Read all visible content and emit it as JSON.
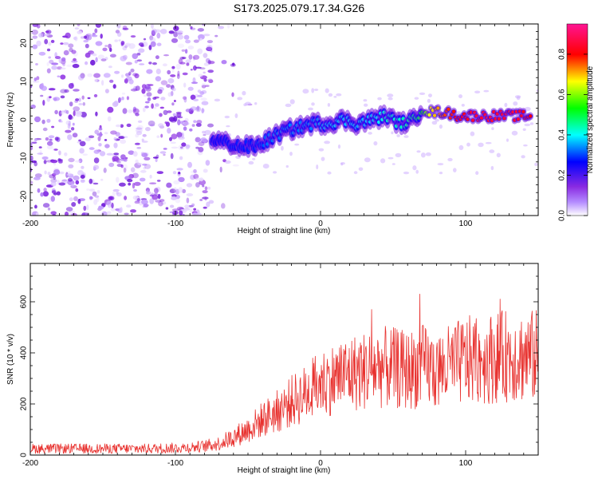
{
  "figure": {
    "title": "S173.2025.079.17.34.G26"
  },
  "chart_data": [
    {
      "type": "heatmap",
      "xlabel": "Height of straight line (km)",
      "ylabel": "Frequency (Hz)",
      "xlim": [
        -200,
        150
      ],
      "ylim": [
        -25,
        25
      ],
      "xticks": [
        -200,
        -100,
        0,
        100
      ],
      "xtick_labels": [
        "-200",
        "-100",
        "0",
        "100"
      ],
      "yticks": [
        -20,
        -10,
        0,
        10,
        20
      ],
      "ytick_labels": [
        "-20",
        "-10",
        "0",
        "10",
        "20"
      ],
      "colorbar": {
        "label": "Normalized spectral amplitude",
        "range": [
          0.0,
          0.95
        ],
        "ticks": [
          0.0,
          0.2,
          0.4,
          0.6,
          0.8
        ],
        "tick_labels": [
          "0.0",
          "0.2",
          "0.4",
          "0.6",
          "0.8"
        ],
        "colormap": [
          "#ffffff",
          "#8a2be2",
          "#0000ff",
          "#00ffff",
          "#00ff00",
          "#ffff00",
          "#ff0000",
          "#ff1493"
        ]
      },
      "noise_region_x": [
        -200,
        -75
      ],
      "signal_track": {
        "x": [
          -75,
          -65,
          -55,
          -45,
          -35,
          -25,
          -15,
          -5,
          5,
          15,
          25,
          35,
          45,
          55,
          65,
          70,
          75,
          85,
          95,
          105,
          115,
          125,
          135,
          145
        ],
        "freq": [
          -5,
          -6,
          -7,
          -7,
          -5,
          -3,
          -2,
          -1,
          -1,
          0,
          -1,
          0,
          1,
          -1,
          0,
          3,
          2,
          2,
          1,
          1,
          1,
          1,
          1,
          1
        ],
        "amplitude": [
          0.25,
          0.3,
          0.3,
          0.3,
          0.35,
          0.35,
          0.35,
          0.35,
          0.4,
          0.4,
          0.4,
          0.4,
          0.45,
          0.45,
          0.5,
          0.55,
          0.7,
          0.8,
          0.85,
          0.9,
          0.9,
          0.9,
          0.9,
          0.85
        ]
      }
    },
    {
      "type": "line",
      "xlabel": "Height of straight line (km)",
      "ylabel": "SNR (10 * v/v)",
      "xlim": [
        -200,
        150
      ],
      "ylim": [
        0,
        750
      ],
      "xticks": [
        -200,
        -100,
        0,
        100
      ],
      "xtick_labels": [
        "-200",
        "-100",
        "0",
        "100"
      ],
      "yticks": [
        0,
        200,
        400,
        600
      ],
      "ytick_labels": [
        "0",
        "200",
        "400",
        "600"
      ],
      "color": "#e8322f",
      "series": [
        {
          "x": [
            -200,
            -180,
            -160,
            -140,
            -120,
            -100,
            -90,
            -80,
            -70,
            -60,
            -50,
            -40,
            -30,
            -20,
            -10,
            0,
            10,
            20,
            30,
            40,
            50,
            60,
            70,
            80,
            90,
            100,
            110,
            120,
            130,
            140,
            150
          ],
          "values": [
            25,
            25,
            25,
            25,
            25,
            28,
            30,
            35,
            45,
            70,
            100,
            140,
            170,
            210,
            240,
            280,
            300,
            320,
            330,
            345,
            340,
            330,
            350,
            330,
            350,
            370,
            375,
            380,
            390,
            385,
            390
          ]
        }
      ]
    }
  ]
}
